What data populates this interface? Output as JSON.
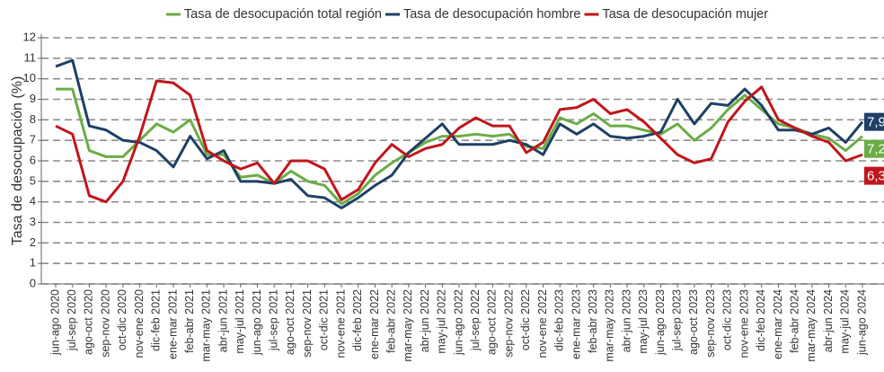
{
  "chart_data": {
    "type": "line",
    "y_label": "Tasa de desocupación (%)",
    "categories": [
      "jun-ago 2020",
      "jul-sep 2020",
      "ago-oct 2020",
      "sep-nov 2020",
      "oct-dic 2020",
      "nov-ene 2020",
      "dic-feb 2021",
      "ene-mar 2021",
      "feb-abr 2021",
      "mar-may 2021",
      "abr-jun 2021",
      "may-jul 2021",
      "jun-ago 2021",
      "jul-sep 2021",
      "ago-oct 2021",
      "sep-nov 2021",
      "oct-dic 2021",
      "nov-ene 2021",
      "dic-feb 2022",
      "ene-mar 2022",
      "feb-abr 2022",
      "mar-may 2022",
      "abr-jun 2022",
      "may-jul 2022",
      "jun-ago 2022",
      "jul-sep 2022",
      "ago-oct 2022",
      "sep-nov 2022",
      "oct-dic 2022",
      "nov-ene 2022",
      "dic-feb 2023",
      "ene-mar 2023",
      "feb-abr 2023",
      "mar-may 2023",
      "abr-jun 2023",
      "may-jul 2023",
      "jun-ago 2023",
      "jul-sep 2023",
      "ago-oct 2023",
      "sep-nov 2023",
      "oct-dic 2023",
      "nov-ene 2023",
      "dic-feb 2024",
      "ene-mar 2024",
      "feb-abr 2024",
      "mar-may 2024",
      "abr-jun 2024",
      "may-jul 2024",
      "jun-ago 2024"
    ],
    "series": [
      {
        "name": "Tasa de desocupación total región",
        "color": "#6aad45",
        "values": [
          9.5,
          9.5,
          6.5,
          6.2,
          6.2,
          7.0,
          7.8,
          7.4,
          8.0,
          6.3,
          6.3,
          5.2,
          5.3,
          4.9,
          5.5,
          5.0,
          4.8,
          3.9,
          4.4,
          5.3,
          5.9,
          6.4,
          6.9,
          7.2,
          7.2,
          7.3,
          7.2,
          7.3,
          6.7,
          6.6,
          8.1,
          7.8,
          8.3,
          7.7,
          7.7,
          7.5,
          7.3,
          7.8,
          7.0,
          7.6,
          8.5,
          9.2,
          8.5,
          7.8,
          7.6,
          7.3,
          7.1,
          6.5,
          7.2
        ],
        "value_labels": [
          null,
          null,
          null,
          null,
          null,
          null,
          null,
          null,
          null,
          null,
          null,
          null,
          null,
          null,
          null,
          null,
          null,
          null,
          null,
          null,
          null,
          null,
          null,
          null,
          null,
          null,
          null,
          null,
          null,
          null,
          null,
          null,
          null,
          null,
          null,
          null,
          null,
          null,
          null,
          null,
          null,
          null,
          null,
          null,
          null,
          null,
          null,
          null,
          "7,2"
        ]
      },
      {
        "name": "Tasa de desocupación hombre",
        "color": "#1e3f66",
        "values": [
          10.6,
          10.9,
          7.7,
          7.5,
          7.0,
          6.9,
          6.5,
          5.7,
          7.2,
          6.1,
          6.5,
          5.0,
          5.0,
          4.9,
          5.1,
          4.3,
          4.2,
          3.7,
          4.2,
          4.8,
          5.3,
          6.4,
          7.1,
          7.8,
          6.8,
          6.8,
          6.8,
          7.0,
          6.8,
          6.3,
          7.8,
          7.3,
          7.8,
          7.2,
          7.1,
          7.2,
          7.4,
          9.0,
          7.8,
          8.8,
          8.7,
          9.5,
          8.7,
          7.5,
          7.5,
          7.3,
          7.6,
          6.9,
          7.9
        ],
        "value_labels": [
          null,
          null,
          null,
          null,
          null,
          null,
          null,
          null,
          null,
          null,
          null,
          null,
          null,
          null,
          null,
          null,
          null,
          null,
          null,
          null,
          null,
          null,
          null,
          null,
          null,
          null,
          null,
          null,
          null,
          null,
          null,
          null,
          null,
          null,
          null,
          null,
          null,
          null,
          null,
          null,
          null,
          null,
          null,
          null,
          null,
          null,
          null,
          null,
          "7,9"
        ]
      },
      {
        "name": "Tasa de desocupación mujer",
        "color": "#c0161b",
        "values": [
          7.7,
          7.3,
          4.3,
          4.0,
          5.0,
          7.2,
          9.9,
          9.8,
          9.2,
          6.5,
          6.0,
          5.6,
          5.9,
          4.9,
          6.0,
          6.0,
          5.6,
          4.1,
          4.6,
          5.9,
          6.8,
          6.2,
          6.6,
          6.8,
          7.6,
          8.1,
          7.7,
          7.7,
          6.4,
          6.9,
          8.5,
          8.6,
          9.0,
          8.3,
          8.5,
          7.9,
          7.1,
          6.3,
          5.9,
          6.1,
          7.9,
          8.9,
          9.6,
          8.0,
          7.6,
          7.2,
          6.9,
          6.0,
          6.3
        ],
        "value_labels": [
          null,
          null,
          null,
          null,
          null,
          null,
          null,
          null,
          null,
          null,
          null,
          null,
          null,
          null,
          null,
          null,
          null,
          null,
          null,
          null,
          null,
          null,
          null,
          null,
          null,
          null,
          null,
          null,
          null,
          null,
          null,
          null,
          null,
          null,
          null,
          null,
          null,
          null,
          null,
          null,
          null,
          null,
          null,
          null,
          null,
          null,
          null,
          null,
          "6,3"
        ]
      }
    ],
    "ylim": [
      0,
      12
    ],
    "yticks": [
      0,
      1,
      2,
      3,
      4,
      5,
      6,
      7,
      8,
      9,
      10,
      11,
      12
    ],
    "grid": true,
    "legend": "top"
  }
}
